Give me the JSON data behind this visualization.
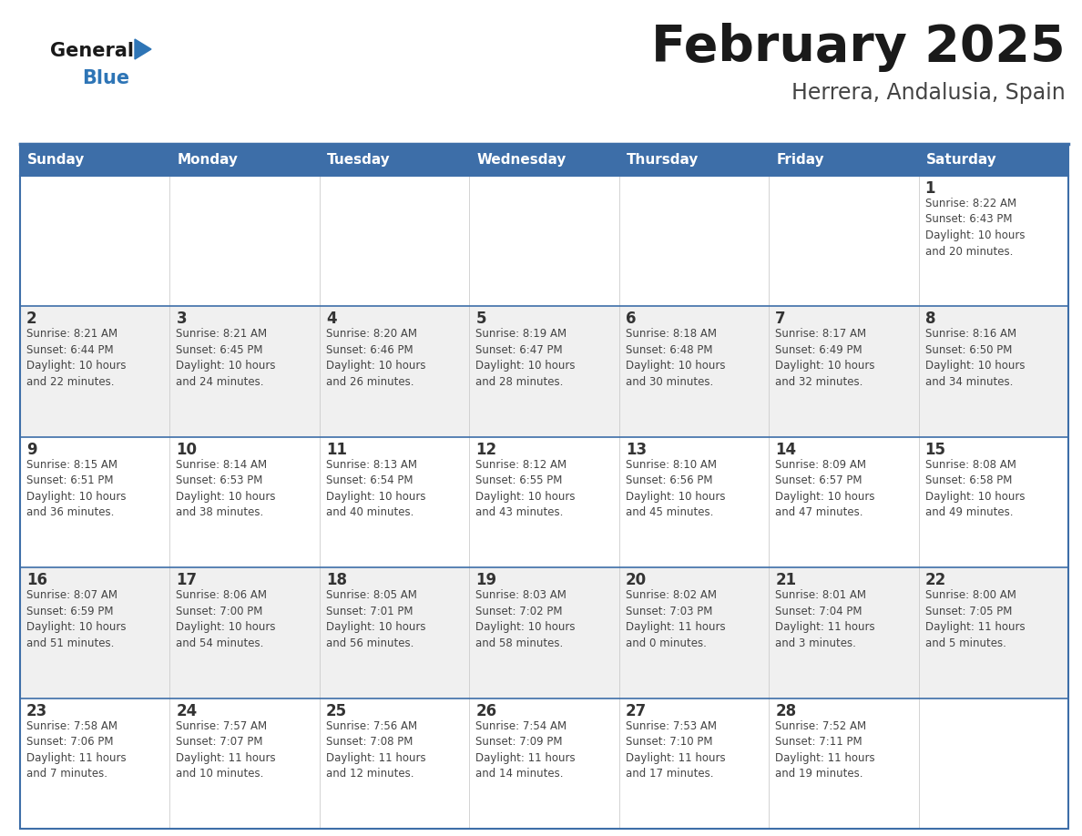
{
  "title": "February 2025",
  "subtitle": "Herrera, Andalusia, Spain",
  "header_bg": "#3d6ea8",
  "header_text_color": "#FFFFFF",
  "cell_bg_odd": "#FFFFFF",
  "cell_bg_even": "#F0F0F0",
  "border_color": "#3d6ea8",
  "separator_color": "#3d6ea8",
  "day_headers": [
    "Sunday",
    "Monday",
    "Tuesday",
    "Wednesday",
    "Thursday",
    "Friday",
    "Saturday"
  ],
  "title_color": "#1a1a1a",
  "subtitle_color": "#444444",
  "day_num_color": "#333333",
  "info_color": "#444444",
  "general_text_color": "#1a1a1a",
  "blue_text_color": "#2E75B6",
  "triangle_color": "#2E75B6",
  "weeks": [
    [
      {
        "day": "",
        "info": ""
      },
      {
        "day": "",
        "info": ""
      },
      {
        "day": "",
        "info": ""
      },
      {
        "day": "",
        "info": ""
      },
      {
        "day": "",
        "info": ""
      },
      {
        "day": "",
        "info": ""
      },
      {
        "day": "1",
        "info": "Sunrise: 8:22 AM\nSunset: 6:43 PM\nDaylight: 10 hours\nand 20 minutes."
      }
    ],
    [
      {
        "day": "2",
        "info": "Sunrise: 8:21 AM\nSunset: 6:44 PM\nDaylight: 10 hours\nand 22 minutes."
      },
      {
        "day": "3",
        "info": "Sunrise: 8:21 AM\nSunset: 6:45 PM\nDaylight: 10 hours\nand 24 minutes."
      },
      {
        "day": "4",
        "info": "Sunrise: 8:20 AM\nSunset: 6:46 PM\nDaylight: 10 hours\nand 26 minutes."
      },
      {
        "day": "5",
        "info": "Sunrise: 8:19 AM\nSunset: 6:47 PM\nDaylight: 10 hours\nand 28 minutes."
      },
      {
        "day": "6",
        "info": "Sunrise: 8:18 AM\nSunset: 6:48 PM\nDaylight: 10 hours\nand 30 minutes."
      },
      {
        "day": "7",
        "info": "Sunrise: 8:17 AM\nSunset: 6:49 PM\nDaylight: 10 hours\nand 32 minutes."
      },
      {
        "day": "8",
        "info": "Sunrise: 8:16 AM\nSunset: 6:50 PM\nDaylight: 10 hours\nand 34 minutes."
      }
    ],
    [
      {
        "day": "9",
        "info": "Sunrise: 8:15 AM\nSunset: 6:51 PM\nDaylight: 10 hours\nand 36 minutes."
      },
      {
        "day": "10",
        "info": "Sunrise: 8:14 AM\nSunset: 6:53 PM\nDaylight: 10 hours\nand 38 minutes."
      },
      {
        "day": "11",
        "info": "Sunrise: 8:13 AM\nSunset: 6:54 PM\nDaylight: 10 hours\nand 40 minutes."
      },
      {
        "day": "12",
        "info": "Sunrise: 8:12 AM\nSunset: 6:55 PM\nDaylight: 10 hours\nand 43 minutes."
      },
      {
        "day": "13",
        "info": "Sunrise: 8:10 AM\nSunset: 6:56 PM\nDaylight: 10 hours\nand 45 minutes."
      },
      {
        "day": "14",
        "info": "Sunrise: 8:09 AM\nSunset: 6:57 PM\nDaylight: 10 hours\nand 47 minutes."
      },
      {
        "day": "15",
        "info": "Sunrise: 8:08 AM\nSunset: 6:58 PM\nDaylight: 10 hours\nand 49 minutes."
      }
    ],
    [
      {
        "day": "16",
        "info": "Sunrise: 8:07 AM\nSunset: 6:59 PM\nDaylight: 10 hours\nand 51 minutes."
      },
      {
        "day": "17",
        "info": "Sunrise: 8:06 AM\nSunset: 7:00 PM\nDaylight: 10 hours\nand 54 minutes."
      },
      {
        "day": "18",
        "info": "Sunrise: 8:05 AM\nSunset: 7:01 PM\nDaylight: 10 hours\nand 56 minutes."
      },
      {
        "day": "19",
        "info": "Sunrise: 8:03 AM\nSunset: 7:02 PM\nDaylight: 10 hours\nand 58 minutes."
      },
      {
        "day": "20",
        "info": "Sunrise: 8:02 AM\nSunset: 7:03 PM\nDaylight: 11 hours\nand 0 minutes."
      },
      {
        "day": "21",
        "info": "Sunrise: 8:01 AM\nSunset: 7:04 PM\nDaylight: 11 hours\nand 3 minutes."
      },
      {
        "day": "22",
        "info": "Sunrise: 8:00 AM\nSunset: 7:05 PM\nDaylight: 11 hours\nand 5 minutes."
      }
    ],
    [
      {
        "day": "23",
        "info": "Sunrise: 7:58 AM\nSunset: 7:06 PM\nDaylight: 11 hours\nand 7 minutes."
      },
      {
        "day": "24",
        "info": "Sunrise: 7:57 AM\nSunset: 7:07 PM\nDaylight: 11 hours\nand 10 minutes."
      },
      {
        "day": "25",
        "info": "Sunrise: 7:56 AM\nSunset: 7:08 PM\nDaylight: 11 hours\nand 12 minutes."
      },
      {
        "day": "26",
        "info": "Sunrise: 7:54 AM\nSunset: 7:09 PM\nDaylight: 11 hours\nand 14 minutes."
      },
      {
        "day": "27",
        "info": "Sunrise: 7:53 AM\nSunset: 7:10 PM\nDaylight: 11 hours\nand 17 minutes."
      },
      {
        "day": "28",
        "info": "Sunrise: 7:52 AM\nSunset: 7:11 PM\nDaylight: 11 hours\nand 19 minutes."
      },
      {
        "day": "",
        "info": ""
      }
    ]
  ]
}
